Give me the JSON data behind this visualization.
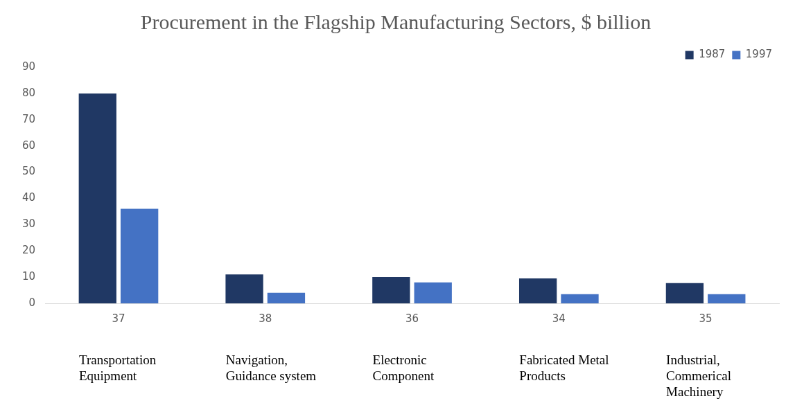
{
  "chart_data": {
    "type": "bar",
    "title": "Procurement in the Flagship Manufacturing Sectors, $ billion",
    "categories": [
      "37",
      "38",
      "36",
      "34",
      "35"
    ],
    "annotations": [
      "Transportation Equipment",
      "Navigation, Guidance system",
      "Electronic Component",
      "Fabricated Metal Products",
      "Industrial, Commerical Machinery"
    ],
    "series": [
      {
        "name": "1987",
        "color": "#203864",
        "values": [
          80,
          11,
          10,
          9.5,
          7.7
        ]
      },
      {
        "name": "1997",
        "color": "#4472c4",
        "values": [
          36,
          4,
          8,
          3.5,
          3.5
        ]
      }
    ],
    "ylim": [
      0,
      90
    ],
    "yticks": [
      0,
      10,
      20,
      30,
      40,
      50,
      60,
      70,
      80,
      90
    ],
    "grid": false,
    "legend": "top right"
  }
}
